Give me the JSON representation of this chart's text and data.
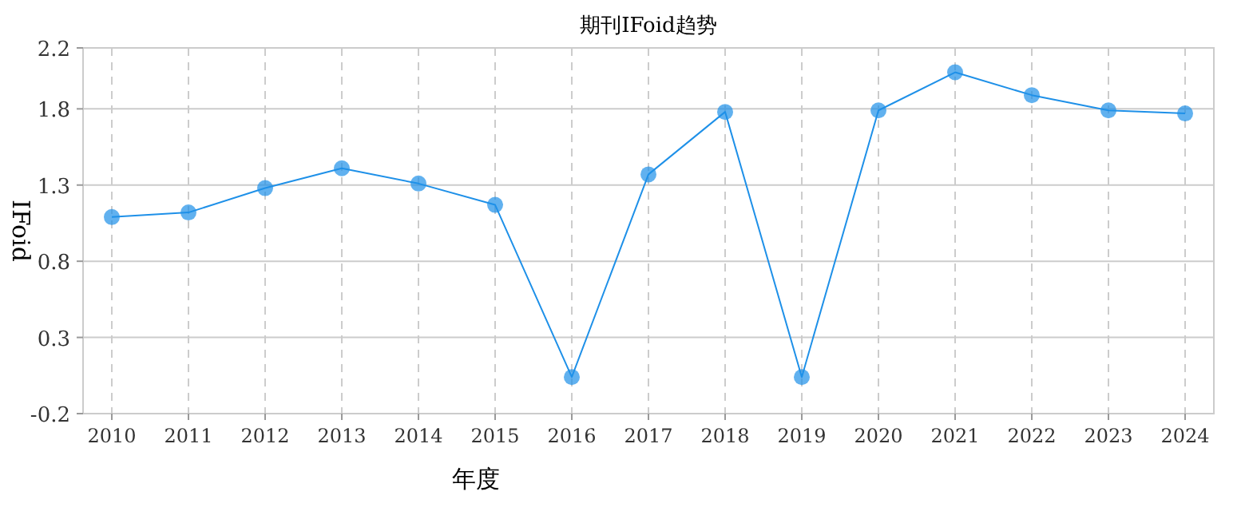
{
  "chart_data": {
    "type": "line",
    "title": "期刊IFoid趋势",
    "xlabel": "年度",
    "ylabel": "IFoid",
    "categories": [
      "2010",
      "2011",
      "2012",
      "2013",
      "2014",
      "2015",
      "2016",
      "2017",
      "2018",
      "2019",
      "2020",
      "2021",
      "2022",
      "2023",
      "2024"
    ],
    "series": [
      {
        "color": "#1e90e8",
        "values": [
          1.09,
          1.12,
          1.28,
          1.41,
          1.31,
          1.17,
          0.04,
          1.37,
          1.78,
          0.04,
          1.79,
          2.04,
          1.89,
          1.79,
          1.77
        ]
      }
    ],
    "ylim": [
      -0.2,
      2.2
    ],
    "yticks": [
      -0.2,
      0.3,
      0.8,
      1.3,
      1.8,
      2.2
    ],
    "grid": true,
    "marker": "circle",
    "line_style": "solid"
  }
}
